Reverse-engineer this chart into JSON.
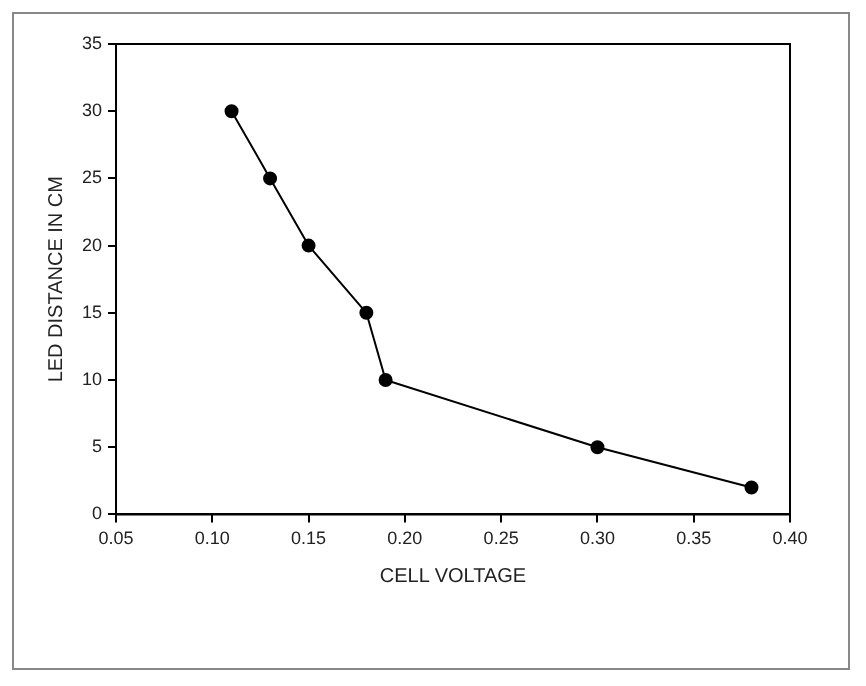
{
  "chart_data": {
    "type": "line",
    "xlabel": "CELL VOLTAGE",
    "ylabel": "LED DISTANCE IN CM",
    "x": [
      0.11,
      0.13,
      0.15,
      0.18,
      0.19,
      0.3,
      0.38
    ],
    "series": [
      {
        "color": "#000000",
        "values": [
          30,
          25,
          20,
          15,
          10,
          5,
          2
        ]
      }
    ],
    "xlim": [
      0.05,
      0.4
    ],
    "xticks": [
      0.05,
      {
        "value": 0.1,
        "label": "0.10"
      },
      0.15,
      {
        "value": 0.2,
        "label": "0.20"
      },
      0.25,
      {
        "value": 0.3,
        "label": "0.30"
      },
      0.35,
      {
        "value": 0.4,
        "label": "0.40"
      }
    ],
    "ylim": [
      0,
      35
    ],
    "yticks": [
      0,
      5,
      10,
      15,
      20,
      25,
      30,
      35
    ],
    "grid": false,
    "legend": false,
    "marker": "circle",
    "line_style": "solid"
  }
}
